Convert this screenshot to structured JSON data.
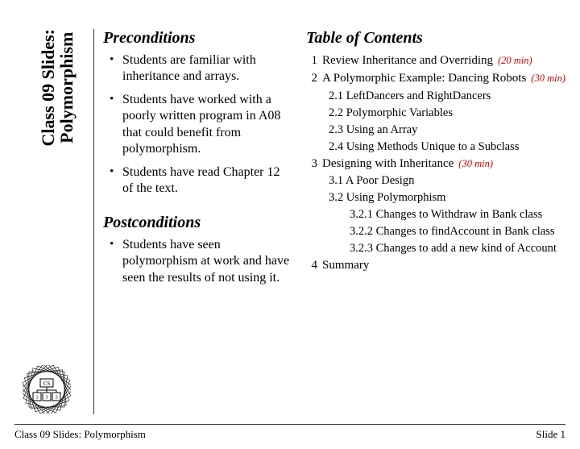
{
  "title": {
    "line1": "Class 09 Slides:",
    "line2": "Polymorphism"
  },
  "colors": {
    "time": "#cc0000",
    "text": "#000000",
    "rule": "#333333",
    "background": "#ffffff"
  },
  "preconditions": {
    "heading": "Preconditions",
    "items": [
      "Students are familiar with inheritance and arrays.",
      "Students have worked with a poorly written program in A08 that could benefit from polymorphism.",
      "Students have read Chapter 12 of the text."
    ]
  },
  "postconditions": {
    "heading": "Postconditions",
    "items": [
      "Students have seen polymorphism at work and have seen the results of not using it."
    ]
  },
  "toc": {
    "heading": "Table of Contents",
    "entries": [
      {
        "num": "1",
        "label": "Review Inheritance and Overriding",
        "time": "(20 min)"
      },
      {
        "num": "2",
        "label": "A Polymorphic Example: Dancing Robots",
        "time": "(30 min)"
      },
      {
        "sub": true,
        "num": "2.1",
        "label": "LeftDancers and RightDancers"
      },
      {
        "sub": true,
        "num": "2.2",
        "label": "Polymorphic Variables"
      },
      {
        "sub": true,
        "num": "2.3",
        "label": "Using an Array"
      },
      {
        "sub": true,
        "num": "2.4",
        "label": "Using Methods Unique to a Subclass"
      },
      {
        "num": "3",
        "label": "Designing with Inheritance",
        "time": "(30 min)"
      },
      {
        "sub": true,
        "num": "3.1",
        "label": "A Poor Design"
      },
      {
        "sub": true,
        "num": "3.2",
        "label": "Using Polymorphism"
      },
      {
        "subsub": true,
        "num": "3.2.1",
        "label": "Changes to Withdraw in Bank class"
      },
      {
        "subsub": true,
        "num": "3.2.2",
        "label": "Changes to findAccount in Bank class"
      },
      {
        "subsub": true,
        "num": "3.2.3",
        "label": "Changes to add a new kind of Account"
      },
      {
        "num": "4",
        "label": "Summary"
      }
    ]
  },
  "footer": {
    "left": "Class 09 Slides: Polymorphism",
    "right": "Slide 1"
  },
  "logo": {
    "cs": "CS",
    "cells": [
      "1",
      "3",
      "3"
    ]
  }
}
